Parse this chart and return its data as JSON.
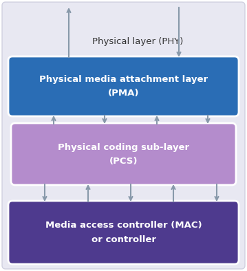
{
  "bg_color": "#e8e8f2",
  "bg_edge_color": "#d0d0e0",
  "pma_color": "#2a6db5",
  "pcs_color": "#b48ccc",
  "mac_color": "#4e3a8e",
  "text_white": "#ffffff",
  "text_dark": "#333333",
  "arrow_color": "#8899aa",
  "phy_label": "Physical layer (PHY)",
  "pma_line1": "Physical media attachment layer",
  "pma_line2": "(PMA)",
  "pcs_line1": "Physical coding sub-layer",
  "pcs_line2": "(PCS)",
  "mac_line1": "Media access controller (MAC)",
  "mac_line2": "or controller",
  "figw": 3.59,
  "figh": 3.94,
  "dpi": 100
}
